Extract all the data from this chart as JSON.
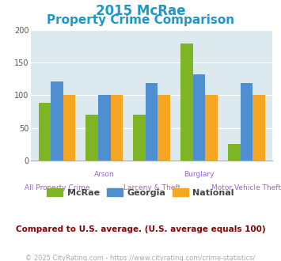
{
  "title_line1": "2015 McRae",
  "title_line2": "Property Crime Comparison",
  "mcrae_values": [
    88,
    70,
    70,
    179,
    25
  ],
  "georgia_values": [
    121,
    101,
    119,
    132,
    119
  ],
  "national_values": [
    100,
    100,
    100,
    100,
    100
  ],
  "mcrae_color": "#7db524",
  "georgia_color": "#4d8fd1",
  "national_color": "#f5a623",
  "ylim": [
    0,
    200
  ],
  "yticks": [
    0,
    50,
    100,
    150,
    200
  ],
  "plot_bg": "#dce9ef",
  "title_color": "#2196c8",
  "legend_labels": [
    "McRae",
    "Georgia",
    "National"
  ],
  "legend_text_color": "#444444",
  "footnote": "Compared to U.S. average. (U.S. average equals 100)",
  "footnote_color": "#8B0000",
  "copyright_text": "© 2025 CityRating.com - https://www.cityrating.com/crime-statistics/",
  "copyright_color": "#aaaaaa",
  "xlabel_color": "#9966cc",
  "top_label_color": "#9966cc",
  "title_fontsize": 12,
  "axis_label_fontsize": 6.5,
  "footnote_fontsize": 7.5,
  "copyright_fontsize": 6,
  "top_labels": {
    "1": "Arson",
    "3": "Burglary"
  },
  "bot_labels": {
    "0": "All Property Crime",
    "2": "Larceny & Theft",
    "4": "Motor Vehicle Theft"
  }
}
